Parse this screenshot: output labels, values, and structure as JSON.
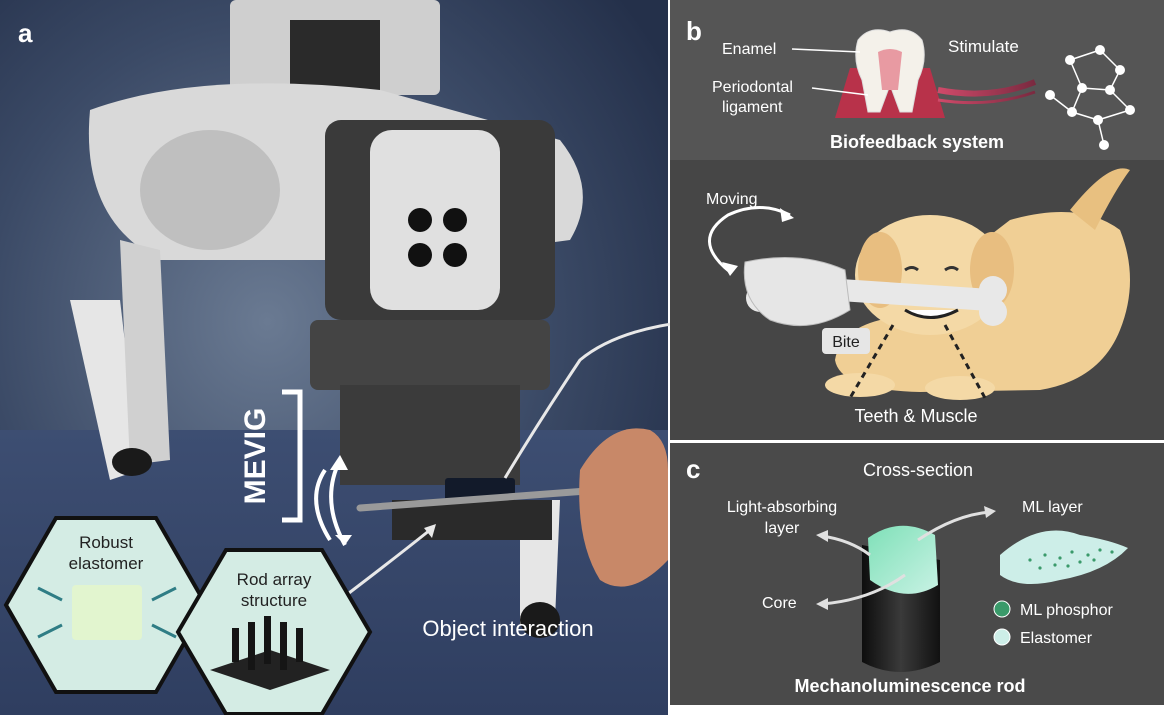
{
  "panels": {
    "a": {
      "label": "a",
      "bracket_label": "MEVIG",
      "caption": "Object interaction",
      "hex1_label": [
        "Robust",
        "elastomer"
      ],
      "hex2_label": [
        "Rod array",
        "structure"
      ]
    },
    "b": {
      "label": "b",
      "enamel_label": "Enamel",
      "ligament_label": [
        "Periodontal",
        "ligament"
      ],
      "stimulate_label": "Stimulate",
      "title": "Biofeedback system",
      "moving_label": "Moving",
      "bite_label": "Bite",
      "teeth_label": "Teeth & Muscle"
    },
    "c": {
      "label": "c",
      "cross_section_label": "Cross-section",
      "light_absorbing_label": [
        "Light-absorbing",
        "layer"
      ],
      "ml_layer_label": "ML layer",
      "core_label": "Core",
      "legend": [
        {
          "label": "ML phosphor",
          "color": "#3a9a6a"
        },
        {
          "label": "Elastomer",
          "color": "#cdeee8"
        }
      ],
      "title": "Mechanoluminescence rod"
    }
  },
  "colors": {
    "panel_bg": "#4a4a4a",
    "hex_fill": "#d4ece4",
    "hex_stroke": "#111111",
    "arrow_teal": "#2f7d85",
    "gum": "#b8324a",
    "dog": "#f0cf95"
  }
}
